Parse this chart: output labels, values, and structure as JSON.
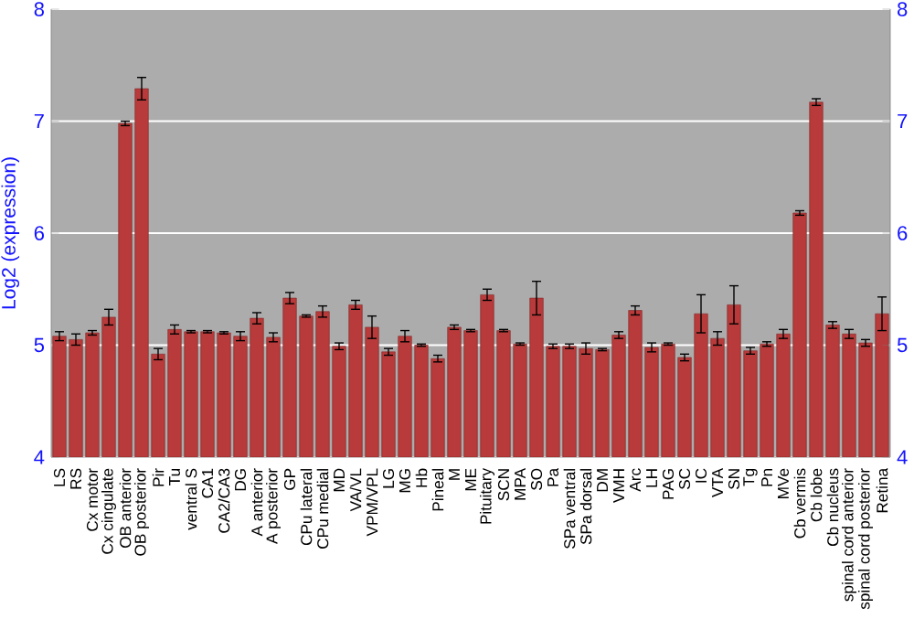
{
  "chart_data": {
    "type": "bar",
    "ylabel": "Log2 (expression)",
    "categories": [
      "LS",
      "RS",
      "Cx motor",
      "Cx cingulate",
      "OB anterior",
      "OB posterior",
      "Pir",
      "Tu",
      "ventral S",
      "CA1",
      "CA2/CA3",
      "DG",
      "A anterior",
      "A posterior",
      "GP",
      "CPu lateral",
      "CPu medial",
      "MD",
      "VA/VL",
      "VPM/VPL",
      "LG",
      "MG",
      "Hb",
      "Pineal",
      "M",
      "ME",
      "Pituitary",
      "SCN",
      "MPA",
      "SO",
      "Pa",
      "SPa ventral",
      "SPa dorsal",
      "DM",
      "VMH",
      "Arc",
      "LH",
      "PAG",
      "SC",
      "IC",
      "VTA",
      "SN",
      "Tg",
      "Pn",
      "MVe",
      "Cb vermis",
      "Cb lobe",
      "Cb nucleus",
      "spinal cord anterior",
      "spinal cord posterior",
      "Retina"
    ],
    "values": [
      5.08,
      5.05,
      5.11,
      5.25,
      6.98,
      7.29,
      4.92,
      5.14,
      5.12,
      5.12,
      5.11,
      5.08,
      5.24,
      5.07,
      5.42,
      5.26,
      5.3,
      4.99,
      5.36,
      5.16,
      4.94,
      5.08,
      5.0,
      4.88,
      5.16,
      5.13,
      5.45,
      5.13,
      5.01,
      5.42,
      4.99,
      4.99,
      4.97,
      4.96,
      5.09,
      5.31,
      4.98,
      5.01,
      4.89,
      5.28,
      5.06,
      5.36,
      4.95,
      5.01,
      5.1,
      6.18,
      7.17,
      5.18,
      5.1,
      5.02,
      5.28
    ],
    "errors": [
      0.04,
      0.05,
      0.02,
      0.07,
      0.02,
      0.1,
      0.05,
      0.04,
      0.01,
      0.01,
      0.01,
      0.04,
      0.05,
      0.04,
      0.05,
      0.01,
      0.05,
      0.03,
      0.04,
      0.1,
      0.03,
      0.05,
      0.01,
      0.03,
      0.02,
      0.01,
      0.05,
      0.01,
      0.01,
      0.15,
      0.02,
      0.02,
      0.05,
      0.01,
      0.03,
      0.04,
      0.04,
      0.01,
      0.03,
      0.17,
      0.06,
      0.17,
      0.03,
      0.02,
      0.04,
      0.02,
      0.03,
      0.03,
      0.04,
      0.03,
      0.15
    ],
    "color": "#b83a3a",
    "ylim": [
      4,
      8
    ],
    "yticks": [
      4,
      5,
      6,
      7,
      8
    ],
    "y2lim": [
      4,
      8
    ],
    "y2ticks": [
      4,
      5,
      6,
      7,
      8
    ],
    "grid": "y"
  }
}
